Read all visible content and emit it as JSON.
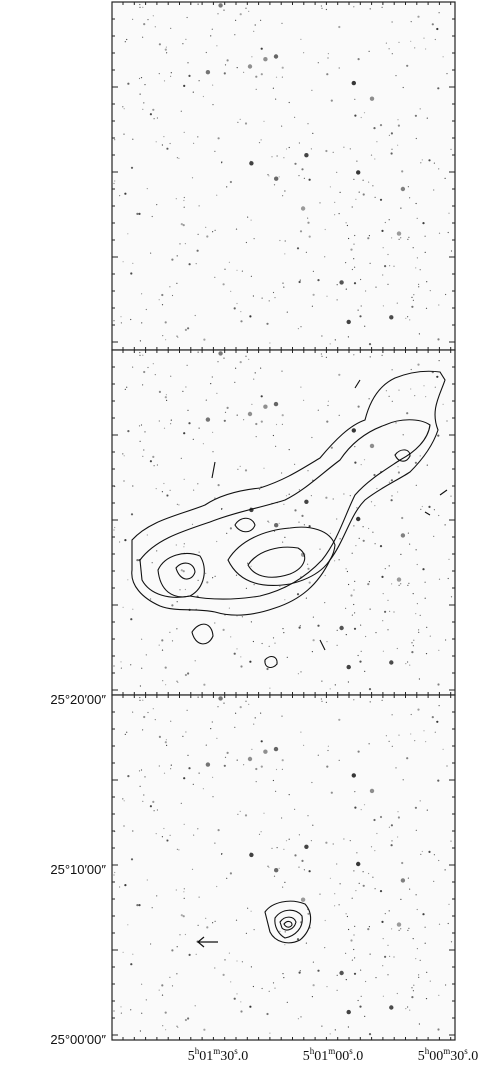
{
  "figure": {
    "y_labels": [
      "25°20′00″",
      "25°10′00″",
      "25°00′00″"
    ],
    "x_labels": [
      {
        "parts": [
          "5",
          "h",
          "01",
          "m",
          "30",
          "s",
          ".0"
        ]
      },
      {
        "parts": [
          "5",
          "h",
          "01",
          "m",
          "00",
          "s",
          ".0"
        ]
      },
      {
        "parts": [
          "5",
          "h",
          "00",
          "m",
          "30",
          "s",
          ".0"
        ]
      }
    ]
  }
}
